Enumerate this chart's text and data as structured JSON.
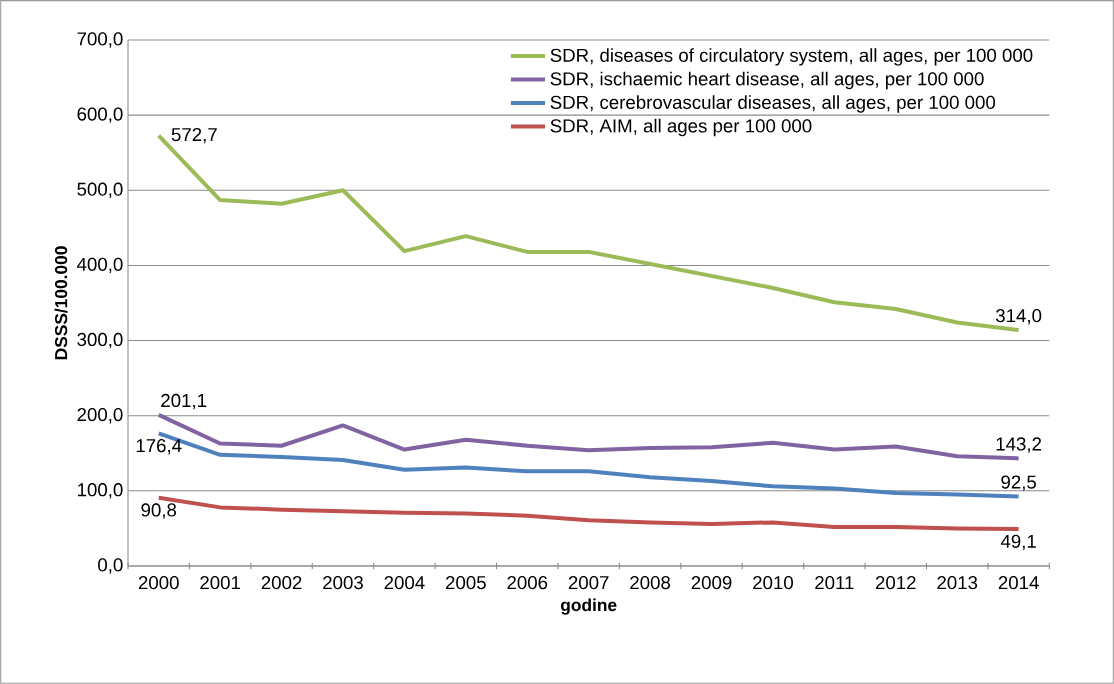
{
  "chart_data": {
    "type": "line",
    "xlabel": "godine",
    "ylabel": "DSSS/100.000",
    "categories": [
      "2000",
      "2001",
      "2002",
      "2003",
      "2004",
      "2005",
      "2006",
      "2007",
      "2008",
      "2009",
      "2010",
      "2011",
      "2012",
      "2013",
      "2014"
    ],
    "series": [
      {
        "name": "SDR, diseases of circulatory system, all ages, per 100 000",
        "color": "#9bbb59",
        "values": [
          572.7,
          487,
          482,
          500,
          419,
          439,
          418,
          418,
          402,
          386,
          370,
          351,
          342,
          324,
          314.0
        ],
        "value_labels": [
          "572,7",
          null,
          null,
          null,
          null,
          null,
          null,
          null,
          null,
          null,
          null,
          null,
          null,
          null,
          "314,0"
        ]
      },
      {
        "name": "SDR, ischaemic heart disease, all ages, per 100 000",
        "color": "#8064a2",
        "values": [
          201.1,
          163,
          160,
          187,
          155,
          168,
          160,
          154,
          157,
          158,
          164,
          155,
          159,
          146,
          143.2
        ],
        "value_labels": [
          "201,1",
          null,
          null,
          null,
          null,
          null,
          null,
          null,
          null,
          null,
          null,
          null,
          null,
          null,
          "143,2"
        ]
      },
      {
        "name": "SDR, cerebrovascular diseases, all ages, per 100 000",
        "color": "#4f81bd",
        "values": [
          176.4,
          148,
          145,
          141,
          128,
          131,
          126,
          126,
          118,
          113,
          106,
          103,
          97,
          95,
          92.5
        ],
        "value_labels": [
          "176,4",
          null,
          null,
          null,
          null,
          null,
          null,
          null,
          null,
          null,
          null,
          null,
          null,
          null,
          "92,5"
        ]
      },
      {
        "name": "SDR, AIM, all ages per 100 000",
        "color": "#c0504d",
        "values": [
          90.8,
          78,
          75,
          73,
          71,
          70,
          67,
          61,
          58,
          56,
          58,
          52,
          52,
          50,
          49.1
        ],
        "value_labels": [
          "90,8",
          null,
          null,
          null,
          null,
          null,
          null,
          null,
          null,
          null,
          null,
          null,
          null,
          null,
          "49,1"
        ]
      }
    ],
    "ylim": [
      0,
      700
    ],
    "yticks": [
      {
        "value": 0,
        "label": "0,0"
      },
      {
        "value": 100,
        "label": "100,0"
      },
      {
        "value": 200,
        "label": "200,0"
      },
      {
        "value": 300,
        "label": "300,0"
      },
      {
        "value": 400,
        "label": "400,0"
      },
      {
        "value": 500,
        "label": "500,0"
      },
      {
        "value": 600,
        "label": "600,0"
      },
      {
        "value": 700,
        "label": "700,0"
      }
    ],
    "grid": "y",
    "legend": "top right",
    "marker": "none",
    "line_style": "solid"
  }
}
